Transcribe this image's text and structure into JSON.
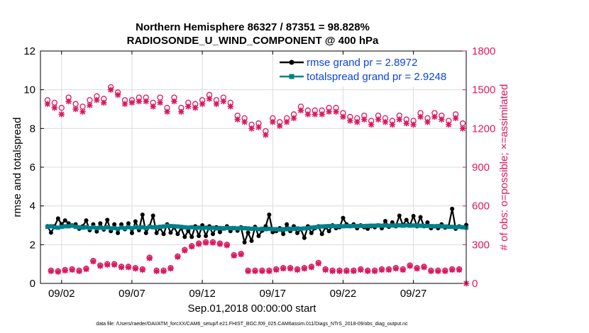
{
  "chart_data": {
    "type": "line",
    "title_line1": "Northern Hemisphere 86327 / 87351 = 98.828%",
    "title_line2": "RADIOSONDE_U_WIND_COMPONENT @ 400 hPa",
    "xlabel": "Sep.01,2018 00:00:00 start",
    "ylabel": "rmse and totalspread",
    "y2label": "# of obs: o=possible; ×=assimilated",
    "footnote": "data file: /Users/raeder/DAI/ATM_forcXX/CAM6_setup/f.e21.FHIST_BGC.f09_025.CAM6assim.011/Diags_NTrS_2018-09/obs_diag_output.nc",
    "xlim": [
      0.5,
      30.75
    ],
    "ylim": [
      0,
      12
    ],
    "y2lim": [
      0,
      1800
    ],
    "x_ticks": [
      2,
      7,
      12,
      17,
      22,
      27
    ],
    "x_tick_labels": [
      "09/02",
      "09/07",
      "09/12",
      "09/17",
      "09/22",
      "09/27"
    ],
    "y_ticks": [
      0,
      2,
      4,
      6,
      8,
      10,
      12
    ],
    "y_tick_labels": [
      "0",
      "2",
      "4",
      "6",
      "8",
      "10",
      "12"
    ],
    "y2_ticks": [
      0,
      300,
      600,
      900,
      1200,
      1500,
      1800
    ],
    "y2_tick_labels": [
      "0",
      "300",
      "600",
      "900",
      "1200",
      "1500",
      "1800"
    ],
    "colors": {
      "rmse": "#000000",
      "spread": "#00808a",
      "obs": "#d9195e",
      "legend_text": "#0b44e6",
      "grid": "#dcdcdc"
    },
    "x": [
      1.0,
      1.25,
      1.5,
      1.75,
      2.0,
      2.25,
      2.5,
      2.75,
      3.0,
      3.25,
      3.5,
      3.75,
      4.0,
      4.25,
      4.5,
      4.75,
      5.0,
      5.25,
      5.5,
      5.75,
      6.0,
      6.25,
      6.5,
      6.75,
      7.0,
      7.25,
      7.5,
      7.75,
      8.0,
      8.25,
      8.5,
      8.75,
      9.0,
      9.25,
      9.5,
      9.75,
      10.0,
      10.25,
      10.5,
      10.75,
      11.0,
      11.25,
      11.5,
      11.75,
      12.0,
      12.25,
      12.5,
      12.75,
      13.0,
      13.25,
      13.5,
      13.75,
      14.0,
      14.25,
      14.5,
      14.75,
      15.0,
      15.25,
      15.5,
      15.75,
      16.0,
      16.25,
      16.5,
      16.75,
      17.0,
      17.25,
      17.5,
      17.75,
      18.0,
      18.25,
      18.5,
      18.75,
      19.0,
      19.25,
      19.5,
      19.75,
      20.0,
      20.25,
      20.5,
      20.75,
      21.0,
      21.25,
      21.5,
      21.75,
      22.0,
      22.25,
      22.5,
      22.75,
      23.0,
      23.25,
      23.5,
      23.75,
      24.0,
      24.25,
      24.5,
      24.75,
      25.0,
      25.25,
      25.5,
      25.75,
      26.0,
      26.25,
      26.5,
      26.75,
      27.0,
      27.25,
      27.5,
      27.75,
      28.0,
      28.25,
      28.5,
      28.75,
      29.0,
      29.25,
      29.5,
      29.75,
      30.0,
      30.25,
      30.5,
      30.75
    ],
    "series": [
      {
        "name": "rmse grand pr = 2.8972",
        "values": [
          2.95,
          2.62,
          2.95,
          3.35,
          3.05,
          3.25,
          3.1,
          3.0,
          3.05,
          2.82,
          2.95,
          3.25,
          2.75,
          3.05,
          2.68,
          3.1,
          2.78,
          3.28,
          2.7,
          3.05,
          2.6,
          3.05,
          2.8,
          3.1,
          2.6,
          3.2,
          2.75,
          3.55,
          2.6,
          2.95,
          3.5,
          2.6,
          2.85,
          2.55,
          3.05,
          2.62,
          2.9,
          2.55,
          2.85,
          2.4,
          2.72,
          2.4,
          2.95,
          2.45,
          3.0,
          2.45,
          2.95,
          2.55,
          2.9,
          2.65,
          2.85,
          2.95,
          2.7,
          2.85,
          2.72,
          2.9,
          2.12,
          2.62,
          2.2,
          2.92,
          2.45,
          2.72,
          2.95,
          3.55,
          2.65,
          2.7,
          2.85,
          2.55,
          3.05,
          2.7,
          2.95,
          2.6,
          2.8,
          2.35,
          2.95,
          2.6,
          2.85,
          2.95,
          2.55,
          2.9,
          2.7,
          3.0,
          2.85,
          2.9,
          3.38,
          3.05,
          2.95,
          3.05,
          2.85,
          3.0,
          2.9,
          2.82,
          2.95,
          2.9,
          3.0,
          2.85,
          3.22,
          2.92,
          3.15,
          2.95,
          3.5,
          3.02,
          3.28,
          3.0,
          3.48,
          2.95,
          3.42,
          2.95,
          3.15,
          2.85,
          2.95,
          2.85,
          3.05,
          2.88,
          2.95,
          3.85,
          2.82,
          2.95,
          2.9,
          3.02
        ],
        "color": "#000000"
      },
      {
        "name": "totalspread grand pr = 2.9248",
        "values": [
          2.92,
          2.95,
          2.9,
          2.88,
          2.92,
          2.95,
          2.95,
          2.98,
          2.92,
          2.9,
          2.88,
          2.9,
          2.85,
          2.9,
          2.86,
          2.88,
          2.85,
          2.9,
          2.84,
          2.86,
          2.82,
          2.88,
          2.85,
          2.9,
          2.85,
          2.9,
          2.88,
          2.9,
          2.86,
          2.92,
          2.9,
          2.9,
          2.92,
          2.94,
          2.98,
          2.96,
          2.95,
          2.94,
          2.92,
          2.9,
          2.88,
          2.9,
          2.86,
          2.88,
          2.85,
          2.88,
          2.85,
          2.87,
          2.84,
          2.86,
          2.83,
          2.86,
          2.85,
          2.86,
          2.84,
          2.86,
          2.85,
          2.84,
          2.82,
          2.84,
          2.8,
          2.82,
          2.8,
          2.82,
          2.8,
          2.8,
          2.78,
          2.8,
          2.8,
          2.82,
          2.82,
          2.84,
          2.82,
          2.84,
          2.85,
          2.88,
          2.9,
          2.92,
          2.94,
          2.95,
          2.96,
          2.96,
          2.95,
          2.96,
          2.95,
          2.96,
          2.96,
          2.97,
          2.96,
          2.97,
          2.96,
          2.97,
          2.98,
          2.98,
          2.99,
          2.98,
          2.99,
          2.98,
          2.99,
          2.99,
          3.0,
          2.98,
          3.0,
          2.98,
          2.99,
          2.98,
          2.98,
          2.97,
          2.97,
          2.96,
          2.95,
          2.96,
          2.95,
          2.94,
          2.92,
          2.92,
          2.9,
          2.92,
          2.9,
          2.88
        ],
        "color": "#00808a"
      }
    ],
    "obs_possible": {
      "x": [
        1.0,
        1.25,
        1.5,
        1.75,
        2.0,
        2.25,
        2.5,
        2.75,
        3.0,
        3.25,
        3.5,
        3.75,
        4.0,
        4.25,
        4.5,
        4.75,
        5.0,
        5.25,
        5.5,
        5.75,
        6.0,
        6.25,
        6.5,
        6.75,
        7.0,
        7.25,
        7.5,
        7.75,
        8.0,
        8.25,
        8.5,
        8.75,
        9.0,
        9.25,
        9.5,
        9.75,
        10.0,
        10.25,
        10.5,
        10.75,
        11.0,
        11.25,
        11.5,
        11.75,
        12.0,
        12.25,
        12.5,
        12.75,
        13.0,
        13.25,
        13.5,
        13.75,
        14.0,
        14.25,
        14.5,
        14.75,
        15.0,
        15.25,
        15.5,
        15.75,
        16.0,
        16.25,
        16.5,
        16.75,
        17.0,
        17.25,
        17.5,
        17.75,
        18.0,
        18.25,
        18.5,
        18.75,
        19.0,
        19.25,
        19.5,
        19.75,
        20.0,
        20.25,
        20.5,
        20.75,
        21.0,
        21.25,
        21.5,
        21.75,
        22.0,
        22.25,
        22.5,
        22.75,
        23.0,
        23.25,
        23.5,
        23.75,
        24.0,
        24.25,
        24.5,
        24.75,
        25.0,
        25.25,
        25.5,
        25.75,
        26.0,
        26.25,
        26.5,
        26.75,
        27.0,
        27.25,
        27.5,
        27.75,
        28.0,
        28.25,
        28.5,
        28.75,
        29.0,
        29.25,
        29.5,
        29.75,
        30.0,
        30.25,
        30.5
      ],
      "values": [
        1420,
        100,
        1400,
        95,
        1360,
        105,
        1440,
        110,
        1390,
        100,
        1370,
        115,
        1420,
        175,
        1450,
        140,
        1430,
        150,
        1520,
        150,
        1480,
        130,
        1420,
        130,
        1420,
        120,
        1440,
        110,
        1440,
        200,
        1400,
        100,
        1440,
        100,
        1360,
        120,
        1440,
        210,
        1360,
        260,
        1400,
        290,
        1390,
        310,
        1420,
        320,
        1460,
        320,
        1420,
        310,
        1440,
        300,
        1400,
        220,
        1300,
        230,
        1280,
        100,
        1230,
        100,
        1240,
        100,
        1180,
        100,
        1280,
        110,
        1250,
        120,
        1280,
        120,
        1310,
        110,
        1370,
        120,
        1340,
        130,
        1340,
        160,
        1340,
        110,
        1360,
        100,
        1360,
        100,
        1320,
        100,
        1290,
        100,
        1280,
        110,
        1300,
        100,
        1260,
        100,
        1300,
        110,
        1280,
        110,
        1260,
        120,
        1300,
        110,
        1270,
        140,
        1260,
        120,
        1320,
        130,
        1280,
        100,
        1320,
        100,
        1300,
        100,
        1260,
        110,
        1310,
        110,
        1240
      ],
      "marker": "o"
    },
    "obs_assimilated": {
      "x": [
        1.0,
        1.25,
        1.5,
        1.75,
        2.0,
        2.25,
        2.5,
        2.75,
        3.0,
        3.25,
        3.5,
        3.75,
        4.0,
        4.25,
        4.5,
        4.75,
        5.0,
        5.25,
        5.5,
        5.75,
        6.0,
        6.25,
        6.5,
        6.75,
        7.0,
        7.25,
        7.5,
        7.75,
        8.0,
        8.25,
        8.5,
        8.75,
        9.0,
        9.25,
        9.5,
        9.75,
        10.0,
        10.25,
        10.5,
        10.75,
        11.0,
        11.25,
        11.5,
        11.75,
        12.0,
        12.25,
        12.5,
        12.75,
        13.0,
        13.25,
        13.5,
        13.75,
        14.0,
        14.25,
        14.5,
        14.75,
        15.0,
        15.25,
        15.5,
        15.75,
        16.0,
        16.25,
        16.5,
        16.75,
        17.0,
        17.25,
        17.5,
        17.75,
        18.0,
        18.25,
        18.5,
        18.75,
        19.0,
        19.25,
        19.5,
        19.75,
        20.0,
        20.25,
        20.5,
        20.75,
        21.0,
        21.25,
        21.5,
        21.75,
        22.0,
        22.25,
        22.5,
        22.75,
        23.0,
        23.25,
        23.5,
        23.75,
        24.0,
        24.25,
        24.5,
        24.75,
        25.0,
        25.25,
        25.5,
        25.75,
        26.0,
        26.25,
        26.5,
        26.75,
        27.0,
        27.25,
        27.5,
        27.75,
        28.0,
        28.25,
        28.5,
        28.75,
        29.0,
        29.25,
        29.5,
        29.75,
        30.0,
        30.25,
        30.5,
        30.75
      ],
      "values": [
        1390,
        95,
        1360,
        90,
        1310,
        100,
        1410,
        105,
        1350,
        95,
        1330,
        110,
        1380,
        170,
        1420,
        135,
        1400,
        145,
        1500,
        145,
        1460,
        125,
        1390,
        125,
        1400,
        115,
        1410,
        105,
        1410,
        195,
        1370,
        95,
        1400,
        95,
        1330,
        115,
        1410,
        205,
        1330,
        255,
        1370,
        285,
        1360,
        305,
        1390,
        315,
        1430,
        315,
        1390,
        305,
        1410,
        295,
        1370,
        215,
        1270,
        225,
        1250,
        95,
        1200,
        95,
        1210,
        95,
        1150,
        95,
        1250,
        105,
        1220,
        115,
        1250,
        115,
        1280,
        105,
        1340,
        115,
        1310,
        125,
        1310,
        155,
        1310,
        105,
        1330,
        95,
        1330,
        95,
        1290,
        95,
        1260,
        95,
        1250,
        105,
        1270,
        95,
        1230,
        95,
        1270,
        105,
        1250,
        105,
        1230,
        115,
        1270,
        105,
        1240,
        135,
        1230,
        115,
        1290,
        125,
        1250,
        95,
        1290,
        95,
        1270,
        95,
        1230,
        105,
        1280,
        105,
        1200,
        0
      ],
      "marker": "x"
    },
    "legend": [
      "rmse grand pr = 2.8972",
      "totalspread grand pr = 2.9248"
    ],
    "legend_position": "top-right"
  }
}
